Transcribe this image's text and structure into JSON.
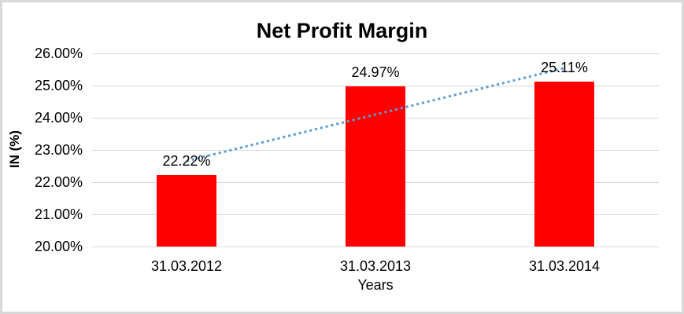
{
  "window": {
    "background": "#ffffff",
    "border_color": "#d9d9d9"
  },
  "chart_data": {
    "type": "bar",
    "title": "Net Profit Margin",
    "categories": [
      "31.03.2012",
      "31.03.2013",
      "31.03.2014"
    ],
    "values": [
      22.22,
      24.97,
      25.11
    ],
    "value_labels": [
      "22.22%",
      "24.97%",
      "25.11%"
    ],
    "xlabel": "Years",
    "ylabel": "IN (%)",
    "ylim": [
      20,
      26
    ],
    "ytick_values": [
      20,
      21,
      22,
      23,
      24,
      25,
      26
    ],
    "ytick_labels": [
      "20.00%",
      "21.00%",
      "22.00%",
      "23.00%",
      "24.00%",
      "25.00%",
      "26.00%"
    ],
    "grid": true,
    "legend_position": "none",
    "bar_color": "#ff0000",
    "gridline_color": "#d9d9d9",
    "text_color": "#000000",
    "trendline": {
      "type": "linear",
      "style": "dotted",
      "color": "#5b9bd5"
    }
  }
}
